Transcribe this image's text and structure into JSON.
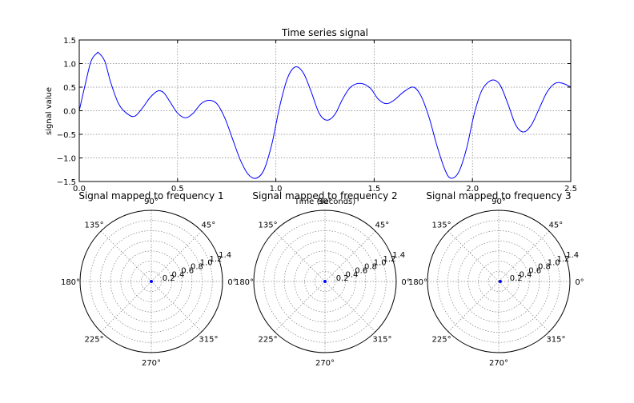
{
  "chart_data": [
    {
      "type": "line",
      "title": "Time series signal",
      "xlabel": "Time (seconds)",
      "ylabel": "signal value",
      "xlim": [
        0,
        2.5
      ],
      "ylim": [
        -1.5,
        1.5
      ],
      "xticks": [
        "0.0",
        "0.5",
        "1.0",
        "1.5",
        "2.0",
        "2.5"
      ],
      "yticks": [
        "−1.5",
        "−1.0",
        "−0.5",
        "0.0",
        "0.5",
        "1.0",
        "1.5"
      ],
      "grid": true,
      "series": [
        {
          "color": "#0000ff",
          "x": [
            0.0,
            0.03,
            0.06,
            0.09,
            0.1,
            0.13,
            0.16,
            0.2,
            0.24,
            0.28,
            0.32,
            0.36,
            0.4,
            0.43,
            0.46,
            0.5,
            0.54,
            0.58,
            0.62,
            0.66,
            0.7,
            0.74,
            0.78,
            0.82,
            0.86,
            0.9,
            0.94,
            0.98,
            1.02,
            1.06,
            1.1,
            1.14,
            1.18,
            1.22,
            1.26,
            1.3,
            1.34,
            1.38,
            1.43,
            1.48,
            1.52,
            1.56,
            1.6,
            1.65,
            1.7,
            1.74,
            1.78,
            1.82,
            1.86,
            1.89,
            1.93,
            1.97,
            2.01,
            2.05,
            2.1,
            2.14,
            2.18,
            2.22,
            2.26,
            2.3,
            2.34,
            2.38,
            2.42,
            2.46,
            2.5
          ],
          "y": [
            0.0,
            0.55,
            1.05,
            1.22,
            1.22,
            1.05,
            0.6,
            0.15,
            -0.05,
            -0.12,
            0.05,
            0.28,
            0.42,
            0.38,
            0.2,
            -0.05,
            -0.15,
            -0.05,
            0.15,
            0.22,
            0.15,
            -0.15,
            -0.6,
            -1.05,
            -1.35,
            -1.43,
            -1.25,
            -0.7,
            0.1,
            0.7,
            0.93,
            0.8,
            0.4,
            -0.05,
            -0.2,
            -0.08,
            0.25,
            0.5,
            0.58,
            0.48,
            0.25,
            0.15,
            0.22,
            0.4,
            0.5,
            0.3,
            -0.15,
            -0.75,
            -1.25,
            -1.43,
            -1.3,
            -0.8,
            -0.05,
            0.45,
            0.65,
            0.55,
            0.15,
            -0.3,
            -0.45,
            -0.3,
            0.05,
            0.4,
            0.58,
            0.58,
            0.5
          ]
        }
      ]
    },
    {
      "type": "polar",
      "title": "Signal mapped to frequency 1",
      "angle_ticks": [
        "0°",
        "45°",
        "90°",
        "135°",
        "180°",
        "225°",
        "270°",
        "315°"
      ],
      "radial_ticks": [
        "0.2",
        "0.4",
        "0.6",
        "0.8",
        "1.0",
        "1.2",
        "1.4"
      ],
      "rlim": [
        0,
        1.4
      ],
      "grid": true,
      "points": [
        {
          "r": 0.0,
          "theta": 0,
          "color": "#0000ff"
        }
      ]
    },
    {
      "type": "polar",
      "title": "Signal mapped to frequency 2",
      "angle_ticks": [
        "0°",
        "45°",
        "90°",
        "135°",
        "180°",
        "225°",
        "270°",
        "315°"
      ],
      "radial_ticks": [
        "0.2",
        "0.4",
        "0.6",
        "0.8",
        "1.0",
        "1.2",
        "1.4"
      ],
      "rlim": [
        0,
        1.4
      ],
      "grid": true,
      "points": [
        {
          "r": 0.0,
          "theta": 0,
          "color": "#0000ff"
        }
      ]
    },
    {
      "type": "polar",
      "title": "Signal mapped to frequency 3",
      "angle_ticks": [
        "0°",
        "45°",
        "90°",
        "135°",
        "180°",
        "225°",
        "270°",
        "315°"
      ],
      "radial_ticks": [
        "0.2",
        "0.4",
        "0.6",
        "0.8",
        "1.0",
        "1.2",
        "1.4"
      ],
      "rlim": [
        0,
        1.4
      ],
      "grid": true,
      "points": [
        {
          "r": 0.03,
          "theta": 0,
          "color": "#0000ff"
        }
      ]
    }
  ]
}
